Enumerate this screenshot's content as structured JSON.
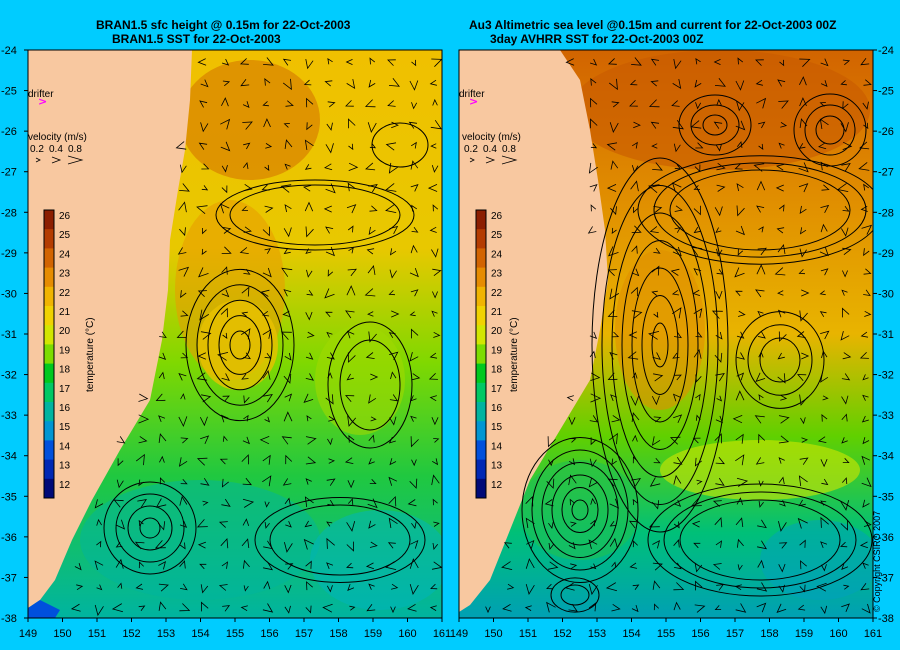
{
  "left_panel": {
    "title_line1": "BRAN1.5 sfc height @ 0.15m for 22-Oct-2003",
    "title_line2": "BRAN1.5 SST for 22-Oct-2003",
    "drifter_label": "drifter",
    "velocity_label": "velocity (m/s)",
    "velocity_scale": [
      "0.2",
      "0.4",
      "0.8"
    ],
    "colorbar_label": "temperature (°C)"
  },
  "right_panel": {
    "title_line1": "Au3 Altimetric sea level  @0.15m and current for 22-Oct-2003 00Z",
    "title_line2": "3day AVHRR SST for 22-Oct-2003 00Z",
    "drifter_label": "drifter",
    "velocity_label": "velocity (m/s)",
    "velocity_scale": [
      "0.2",
      "0.4",
      "0.8"
    ],
    "colorbar_label": "temperature (°C)"
  },
  "lat_ticks": [
    "-24",
    "-25",
    "-26",
    "-27",
    "-28",
    "-29",
    "-30",
    "-31",
    "-32",
    "-33",
    "-34",
    "-35",
    "-36",
    "-37",
    "-38"
  ],
  "lon_ticks": [
    "149",
    "150",
    "151",
    "152",
    "153",
    "154",
    "155",
    "156",
    "157",
    "158",
    "159",
    "160",
    "161"
  ],
  "colorbar_ticks": [
    "26",
    "25",
    "24",
    "23",
    "22",
    "21",
    "20",
    "19",
    "18",
    "17",
    "16",
    "15",
    "14",
    "13",
    "12"
  ],
  "colorbar_colors": [
    "#8c1e00",
    "#b43c00",
    "#d26400",
    "#e68c00",
    "#f0b400",
    "#f0d200",
    "#d2e600",
    "#7ddc00",
    "#00c81e",
    "#00c864",
    "#00b4a0",
    "#0096d2",
    "#0050dc",
    "#0028b4",
    "#000a78"
  ],
  "copyright": "© Copyright CSIRO 2007",
  "colors": {
    "background": "#00ccff",
    "land": "#f8c8a0",
    "drifter": "#ff00ff"
  }
}
